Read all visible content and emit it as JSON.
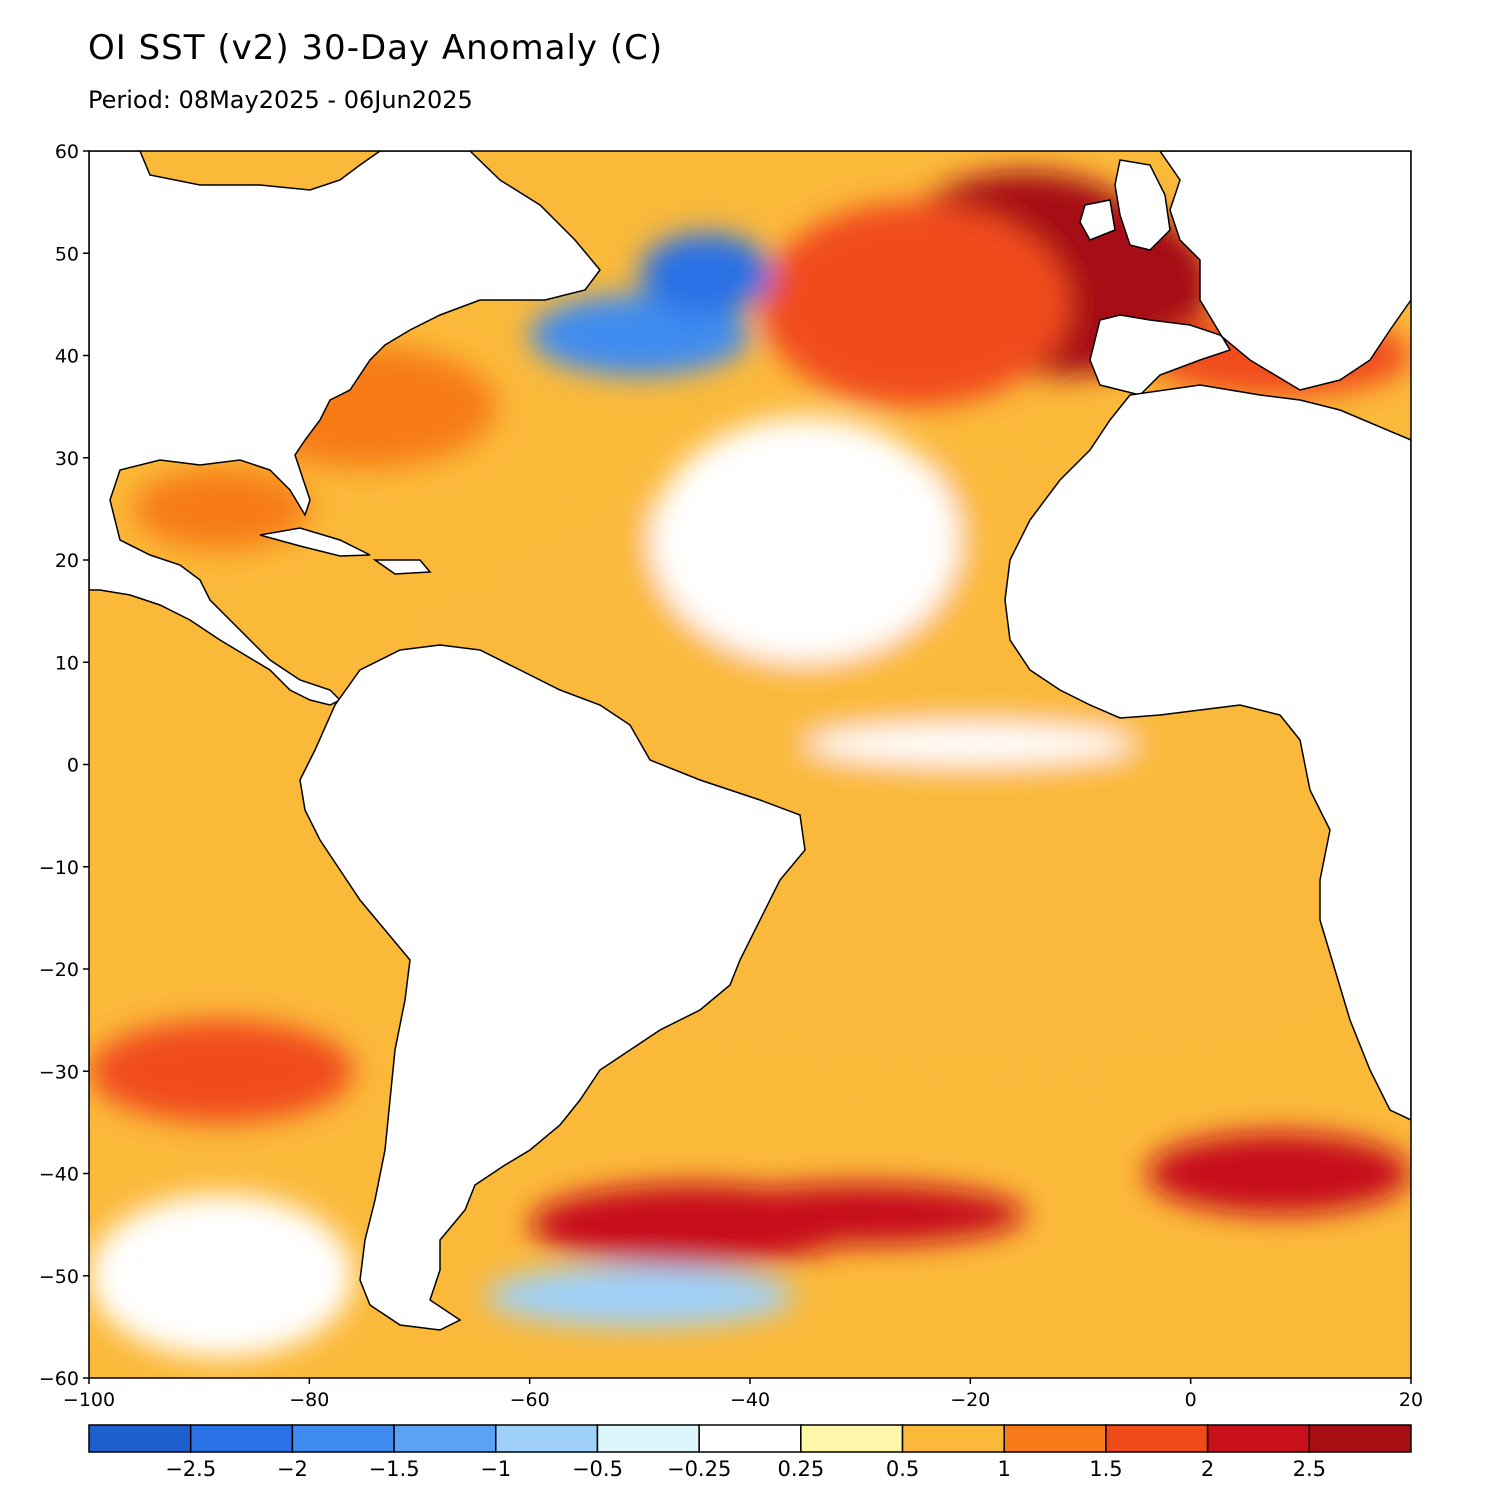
{
  "title": "OI SST (v2) 30-Day Anomaly (C)",
  "subtitle": "Period: 08May2025 - 06Jun2025",
  "map": {
    "lon_range": [
      -100,
      20
    ],
    "lat_range": [
      -60,
      60
    ],
    "lon_ticks": [
      {
        "value": -100,
        "label": "−100"
      },
      {
        "value": -80,
        "label": "−80"
      },
      {
        "value": -60,
        "label": "−60"
      },
      {
        "value": -40,
        "label": "−40"
      },
      {
        "value": -20,
        "label": "−20"
      },
      {
        "value": 0,
        "label": "0"
      },
      {
        "value": 20,
        "label": "20"
      }
    ],
    "lat_ticks": [
      {
        "value": 60,
        "label": "60"
      },
      {
        "value": 50,
        "label": "50"
      },
      {
        "value": 40,
        "label": "40"
      },
      {
        "value": 30,
        "label": "30"
      },
      {
        "value": 20,
        "label": "20"
      },
      {
        "value": 10,
        "label": "10"
      },
      {
        "value": 0,
        "label": "0"
      },
      {
        "value": -10,
        "label": "−10"
      },
      {
        "value": -20,
        "label": "−20"
      },
      {
        "value": -30,
        "label": "−30"
      },
      {
        "value": -40,
        "label": "−40"
      },
      {
        "value": -50,
        "label": "−50"
      },
      {
        "value": -60,
        "label": "−60"
      }
    ]
  },
  "colorbar": {
    "colors": [
      "#1c5fcd",
      "#2a71e6",
      "#3f8cf0",
      "#5aa3f2",
      "#9fd1fb",
      "#dcf6fc",
      "#ffffff",
      "#fff7a8",
      "#fbb93a",
      "#f77b19",
      "#f14b1b",
      "#c8111a",
      "#a60e14"
    ],
    "labels": [
      "−2.5",
      "−2",
      "−1.5",
      "−1",
      "−0.5",
      "−0.25",
      "0.25",
      "0.5",
      "1",
      "1.5",
      "2",
      "2.5"
    ]
  },
  "anomaly_regions": [
    {
      "lon": -20,
      "lat": 0,
      "rx": 55,
      "ry": 30,
      "level": 0.5
    },
    {
      "lon": -12,
      "lat": 47,
      "rx": 14,
      "ry": 9,
      "level": 2.5
    },
    {
      "lon": -15,
      "lat": 50,
      "rx": 12,
      "ry": 8,
      "level": 2.5
    },
    {
      "lon": -25,
      "lat": 45,
      "rx": 14,
      "ry": 10,
      "level": 1.5
    },
    {
      "lon": -50,
      "lat": 42,
      "rx": 10,
      "ry": 4,
      "level": -2
    },
    {
      "lon": -44,
      "lat": 48,
      "rx": 6,
      "ry": 4,
      "level": -2.5
    },
    {
      "lon": -35,
      "lat": 22,
      "rx": 14,
      "ry": 12,
      "level": 0
    },
    {
      "lon": -20,
      "lat": 2,
      "rx": 15,
      "ry": 2,
      "level": 0
    },
    {
      "lon": -45,
      "lat": -45,
      "rx": 15,
      "ry": 4,
      "level": 2
    },
    {
      "lon": -30,
      "lat": -44,
      "rx": 15,
      "ry": 3,
      "level": 2
    },
    {
      "lon": 8,
      "lat": -40,
      "rx": 12,
      "ry": 4,
      "level": 2
    },
    {
      "lon": -50,
      "lat": -52,
      "rx": 14,
      "ry": 3,
      "level": -1
    },
    {
      "lon": -88,
      "lat": -50,
      "rx": 12,
      "ry": 8,
      "level": 0
    },
    {
      "lon": -88,
      "lat": -30,
      "rx": 12,
      "ry": 5,
      "level": 1.5
    },
    {
      "lon": -75,
      "lat": 35,
      "rx": 12,
      "ry": 6,
      "level": 1
    },
    {
      "lon": -88,
      "lat": 25,
      "rx": 8,
      "ry": 4,
      "level": 1
    },
    {
      "lon": 8,
      "lat": 40,
      "rx": 12,
      "ry": 4,
      "level": 1.5
    }
  ]
}
